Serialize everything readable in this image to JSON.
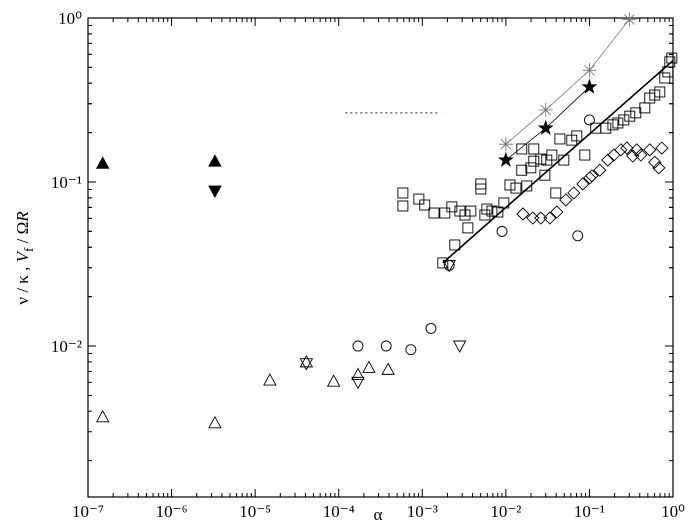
{
  "chart_data": {
    "type": "scatter",
    "xlabel": "α",
    "ylabel": [
      "ν / κ , ",
      "V",
      "f",
      " / Ω",
      "R"
    ],
    "log_x": true,
    "log_y": true,
    "xlim": [
      1e-07,
      1
    ],
    "ylim": [
      0.0012,
      1
    ],
    "xticks": [
      {
        "value": 1e-07,
        "label": "10⁻⁷"
      },
      {
        "value": 1e-06,
        "label": "10⁻⁶"
      },
      {
        "value": 1e-05,
        "label": "10⁻⁵"
      },
      {
        "value": 0.0001,
        "label": "10⁻⁴"
      },
      {
        "value": 0.001,
        "label": "10⁻³"
      },
      {
        "value": 0.01,
        "label": "10⁻²"
      },
      {
        "value": 0.1,
        "label": "10⁻¹"
      },
      {
        "value": 1,
        "label": "10⁰"
      }
    ],
    "yticks": [
      {
        "value": 0.01,
        "label": "10⁻²"
      },
      {
        "value": 0.1,
        "label": "10⁻¹"
      },
      {
        "value": 1,
        "label": "10⁰"
      }
    ],
    "series": [
      {
        "marker": "triangle-up-filled",
        "color": "#000000",
        "x": [
          1.5e-07,
          3.3e-06
        ],
        "y": [
          0.13,
          0.134
        ]
      },
      {
        "marker": "triangle-down-filled",
        "color": "#000000",
        "x": [
          3.3e-06
        ],
        "y": [
          0.088
        ]
      },
      {
        "marker": "triangle-up",
        "color": "#000000",
        "x": [
          1.5e-07,
          3.3e-06,
          1.5e-05,
          4.1e-05,
          8.7e-05,
          0.00017,
          0.00023,
          0.00039
        ],
        "y": [
          0.0037,
          0.0034,
          0.0062,
          0.008,
          0.0061,
          0.0067,
          0.0074,
          0.0072
        ]
      },
      {
        "marker": "triangle-down",
        "color": "#000000",
        "x": [
          4.1e-05,
          0.00017,
          0.0028,
          0.0021
        ],
        "y": [
          0.0078,
          0.006,
          0.01,
          0.031
        ]
      },
      {
        "marker": "circle",
        "color": "#000000",
        "x": [
          0.00017,
          0.00037,
          0.00073,
          0.00127,
          0.0021,
          0.009,
          0.0725,
          0.1
        ],
        "y": [
          0.01,
          0.01,
          0.0095,
          0.0128,
          0.031,
          0.05,
          0.047,
          0.239
        ]
      },
      {
        "marker": "square",
        "color": "#000000",
        "x": [
          0.000586,
          0.000586,
          0.00091,
          0.00107,
          0.00138,
          0.00186,
          0.00226,
          0.00282,
          0.00324,
          0.00381,
          0.00502,
          0.00502,
          0.00561,
          0.00681,
          0.00802,
          0.00946,
          0.0112,
          0.0132,
          0.0155,
          0.0155,
          0.0178,
          0.0216,
          0.0216,
          0.0262,
          0.0293,
          0.0355,
          0.0396,
          0.0443,
          0.0494,
          0.0615,
          0.0706,
          0.0881,
          0.119,
          0.157,
          0.191,
          0.219,
          0.258,
          0.304,
          0.359,
          0.46,
          0.527,
          0.605,
          0.695,
          0.798,
          0.867,
          0.916,
          0.968,
          0.00176,
          0.00245,
          0.00351,
          0.00593,
          0.0199,
          0.0309
        ],
        "y": [
          0.0857,
          0.0714,
          0.0787,
          0.0724,
          0.0647,
          0.0647,
          0.0705,
          0.0665,
          0.0629,
          0.0665,
          0.0973,
          0.0906,
          0.0629,
          0.0665,
          0.0656,
          0.0745,
          0.0959,
          0.0918,
          0.159,
          0.118,
          0.0946,
          0.159,
          0.134,
          0.138,
          0.11,
          0.146,
          0.0857,
          0.183,
          0.136,
          0.18,
          0.191,
          0.146,
          0.213,
          0.213,
          0.223,
          0.229,
          0.239,
          0.252,
          0.264,
          0.283,
          0.325,
          0.339,
          0.354,
          0.431,
          0.469,
          0.54,
          0.57,
          0.0321,
          0.0413,
          0.0525,
          0.0684,
          0.122,
          0.136
        ]
      },
      {
        "marker": "diamond",
        "color": "#000000",
        "x": [
          0.016,
          0.021,
          0.0262,
          0.0336,
          0.0407,
          0.0522,
          0.065,
          0.0834,
          0.107,
          0.133,
          0.166,
          0.196,
          0.238,
          0.28,
          0.33,
          0.369,
          0.412,
          0.527,
          0.605,
          0.676,
          0.735,
          0.101
        ],
        "y": [
          0.0638,
          0.0603,
          0.0603,
          0.0603,
          0.0656,
          0.0777,
          0.0857,
          0.0973,
          0.109,
          0.118,
          0.136,
          0.146,
          0.157,
          0.161,
          0.144,
          0.157,
          0.146,
          0.157,
          0.132,
          0.122,
          0.161,
          0.106
        ]
      },
      {
        "marker": "asterisk",
        "line": "solid",
        "color": "#777777",
        "x": [
          0.01,
          0.03,
          0.1,
          0.3
        ],
        "y": [
          0.17,
          0.275,
          0.48,
          0.98
        ]
      },
      {
        "marker": "star-filled",
        "line": "solid",
        "color": "#000000",
        "x": [
          0.01,
          0.03,
          0.1
        ],
        "y": [
          0.136,
          0.213,
          0.38
        ]
      },
      {
        "line": "thick",
        "color": "#000000",
        "x": [
          0.00176,
          1
        ],
        "y": [
          0.0321,
          0.55
        ]
      },
      {
        "line": "dotted",
        "color": "#555555",
        "x": [
          0.00012,
          0.00165
        ],
        "y": [
          0.264,
          0.264
        ]
      }
    ]
  }
}
